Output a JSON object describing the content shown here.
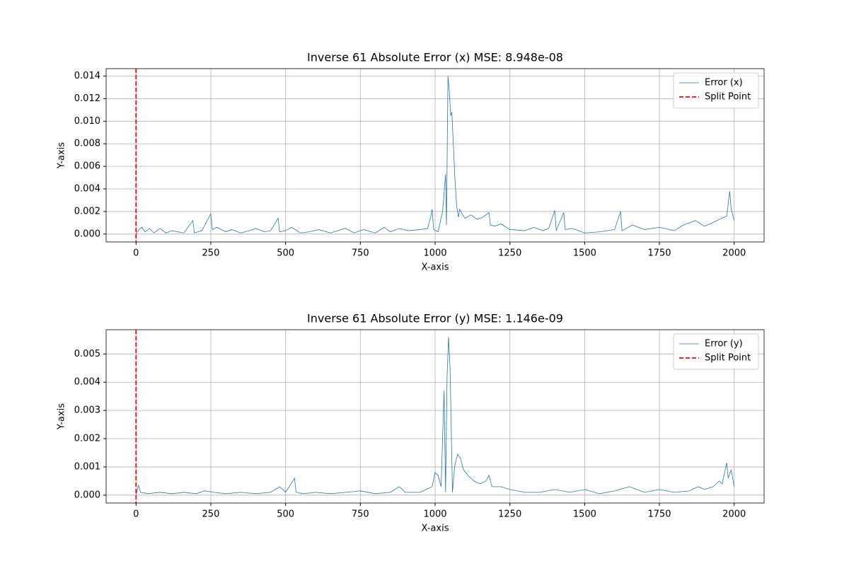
{
  "chart_data": [
    {
      "type": "line",
      "title": "Inverse 61 Absolute Error (x) MSE: 8.948e-08",
      "x_label": "X-axis",
      "y_label": "Y-axis",
      "series": [
        {
          "name": "Error (x)",
          "color": "#1f77b4",
          "x": [
            0,
            10,
            20,
            30,
            45,
            60,
            80,
            100,
            120,
            140,
            160,
            190,
            195,
            220,
            250,
            255,
            270,
            300,
            320,
            350,
            380,
            400,
            430,
            450,
            475,
            480,
            500,
            520,
            550,
            580,
            610,
            650,
            700,
            730,
            760,
            800,
            830,
            850,
            880,
            910,
            950,
            975,
            985,
            990,
            995,
            1010,
            1025,
            1035,
            1038,
            1043,
            1048,
            1052,
            1056,
            1060,
            1066,
            1072,
            1078,
            1082,
            1090,
            1100,
            1120,
            1140,
            1160,
            1180,
            1185,
            1200,
            1220,
            1250,
            1300,
            1330,
            1360,
            1380,
            1400,
            1405,
            1430,
            1435,
            1460,
            1500,
            1550,
            1600,
            1620,
            1625,
            1660,
            1700,
            1750,
            1800,
            1830,
            1870,
            1900,
            1920,
            1950,
            1975,
            1985,
            1990,
            2000
          ],
          "values": [
            0.0,
            0.0004,
            0.0006,
            0.0002,
            0.0005,
            0.0001,
            0.0005,
            0.0001,
            0.0003,
            0.0002,
            0.0001,
            0.0012,
            0.0001,
            0.0003,
            0.0018,
            0.0004,
            0.0006,
            0.0002,
            0.0004,
            0.0001,
            0.0003,
            0.0005,
            0.0002,
            0.0003,
            0.0014,
            0.0002,
            0.0003,
            0.0006,
            0.0001,
            0.0002,
            0.0004,
            0.0001,
            0.0005,
            0.0001,
            0.0004,
            0.0001,
            0.0006,
            0.0002,
            0.0005,
            0.0003,
            0.0004,
            0.0005,
            0.0015,
            0.0022,
            0.0004,
            0.0002,
            0.002,
            0.0053,
            0.0008,
            0.014,
            0.0125,
            0.0105,
            0.0108,
            0.0085,
            0.005,
            0.0025,
            0.0015,
            0.0022,
            0.0018,
            0.0014,
            0.0017,
            0.0013,
            0.0015,
            0.0019,
            0.0008,
            0.0007,
            0.0009,
            0.0004,
            0.0003,
            0.0006,
            0.0003,
            0.0005,
            0.0021,
            0.0003,
            0.0019,
            0.0004,
            0.0005,
            0.0001,
            0.0002,
            0.0004,
            0.002,
            0.0003,
            0.0008,
            0.0004,
            0.0006,
            0.0003,
            0.0008,
            0.0012,
            0.0007,
            0.0009,
            0.0013,
            0.0016,
            0.0038,
            0.0022,
            0.0012
          ]
        }
      ],
      "vlines": [
        {
          "name": "Split Point",
          "color": "#ff0000",
          "x": 0,
          "style": "dashed"
        }
      ],
      "xlim": [
        -100,
        2100
      ],
      "xticks": [
        0,
        250,
        500,
        750,
        1000,
        1250,
        1500,
        1750,
        2000
      ],
      "ylim": [
        -0.0007,
        0.01466
      ],
      "yticks": [
        {
          "value": 0,
          "label": "0.000"
        },
        {
          "value": 0.002,
          "label": "0.002"
        },
        {
          "value": 0.004,
          "label": "0.004"
        },
        {
          "value": 0.006,
          "label": "0.006"
        },
        {
          "value": 0.008,
          "label": "0.008"
        },
        {
          "value": 0.01,
          "label": "0.010"
        },
        {
          "value": 0.012,
          "label": "0.012"
        },
        {
          "value": 0.014,
          "label": "0.014"
        }
      ],
      "grid": true,
      "legend": "upper-right"
    },
    {
      "type": "line",
      "title": "Inverse 61 Absolute Error (y) MSE: 1.146e-09",
      "x_label": "X-axis",
      "y_label": "Y-axis",
      "series": [
        {
          "name": "Error (y)",
          "color": "#1f77b4",
          "x": [
            0,
            8,
            15,
            40,
            80,
            120,
            160,
            200,
            230,
            260,
            300,
            350,
            400,
            450,
            480,
            500,
            530,
            535,
            560,
            600,
            650,
            700,
            750,
            800,
            850,
            880,
            900,
            950,
            990,
            1000,
            1010,
            1020,
            1030,
            1035,
            1040,
            1045,
            1050,
            1058,
            1065,
            1075,
            1085,
            1095,
            1110,
            1130,
            1150,
            1170,
            1180,
            1190,
            1220,
            1250,
            1300,
            1350,
            1400,
            1450,
            1500,
            1550,
            1600,
            1650,
            1700,
            1750,
            1800,
            1850,
            1880,
            1900,
            1930,
            1950,
            1960,
            1975,
            1980,
            1990,
            2000
          ],
          "values": [
            0,
            0.00035,
            0.0001,
            5e-05,
            0.0001,
            5e-05,
            0.0001,
            5e-05,
            0.00015,
            0.0001,
            5e-05,
            0.0001,
            5e-05,
            0.0001,
            0.0003,
            0.0001,
            0.0006,
            0.0001,
            5e-05,
            0.0001,
            5e-05,
            0.0001,
            0.00015,
            5e-05,
            0.0001,
            0.0003,
            0.0001,
            0.0001,
            0.0003,
            0.0008,
            0.0007,
            0.0003,
            0.0037,
            0.0001,
            0.0042,
            0.0056,
            0.0045,
            0.0001,
            0.001,
            0.00145,
            0.0013,
            0.0009,
            0.0007,
            0.0005,
            0.0004,
            0.0005,
            0.0007,
            0.0003,
            0.0003,
            0.0002,
            0.0001,
            0.0001,
            0.0002,
            0.0001,
            0.0002,
            5e-05,
            0.00015,
            0.0003,
            0.0001,
            0.0002,
            0.0001,
            0.00015,
            0.0003,
            0.0002,
            0.0003,
            0.0005,
            0.0004,
            0.00115,
            0.0006,
            0.0009,
            0.0003
          ]
        }
      ],
      "vlines": [
        {
          "name": "Split Point",
          "color": "#ff0000",
          "x": 0,
          "style": "dashed"
        }
      ],
      "xlim": [
        -100,
        2100
      ],
      "xticks": [
        0,
        250,
        500,
        750,
        1000,
        1250,
        1500,
        1750,
        2000
      ],
      "ylim": [
        -0.00028,
        0.00586
      ],
      "yticks": [
        {
          "value": 0,
          "label": "0.000"
        },
        {
          "value": 0.001,
          "label": "0.001"
        },
        {
          "value": 0.002,
          "label": "0.002"
        },
        {
          "value": 0.003,
          "label": "0.003"
        },
        {
          "value": 0.004,
          "label": "0.004"
        },
        {
          "value": 0.005,
          "label": "0.005"
        }
      ],
      "grid": true,
      "legend": "upper-right"
    }
  ]
}
